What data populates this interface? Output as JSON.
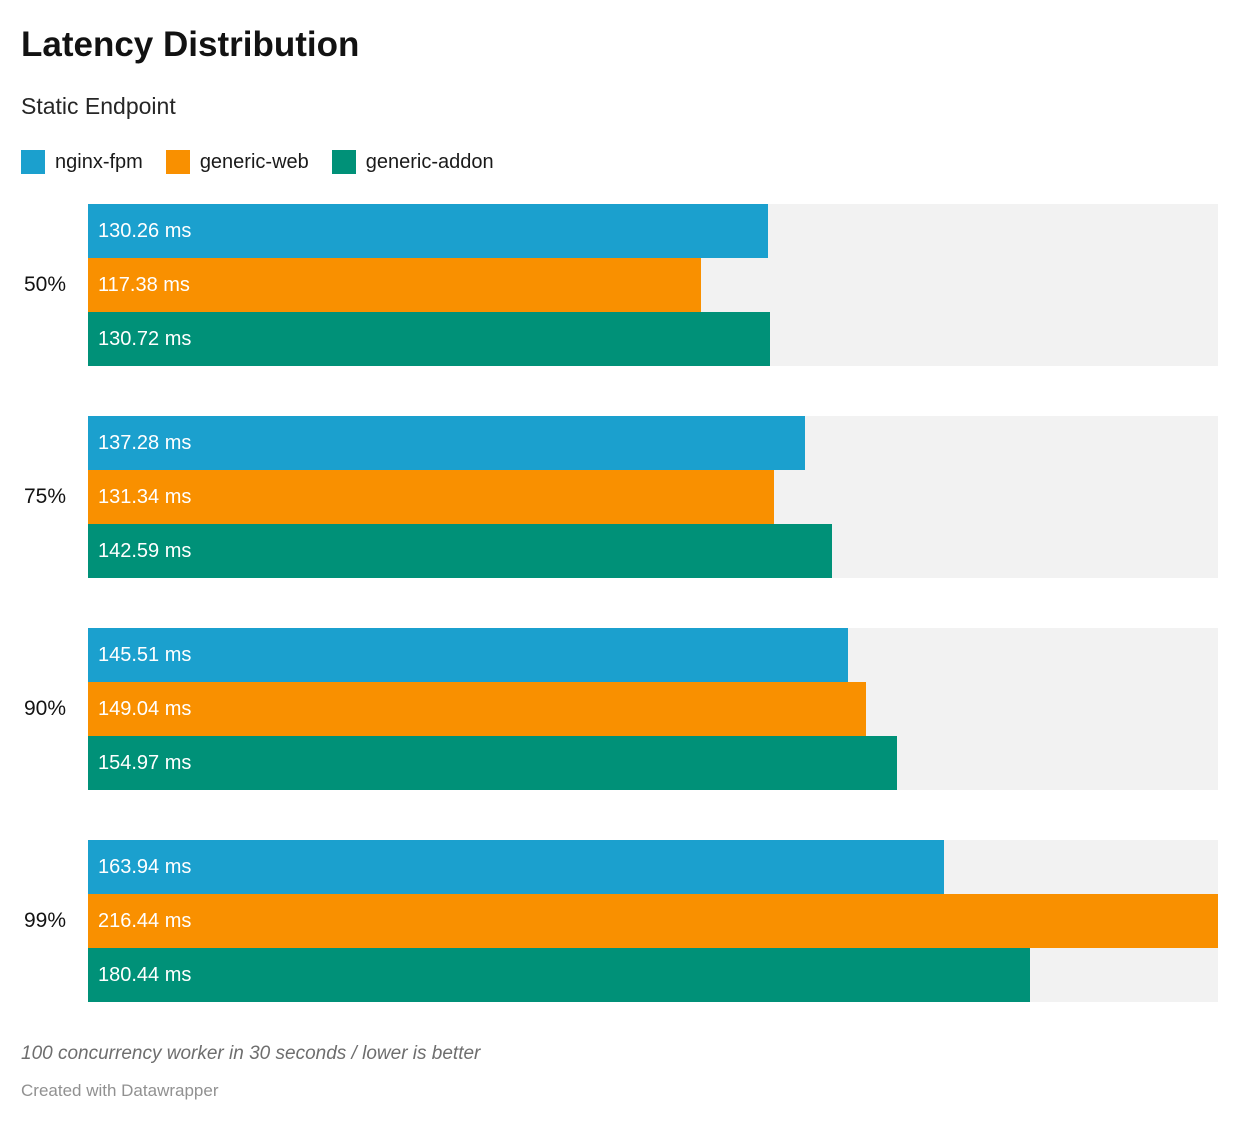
{
  "header": {
    "title": "Latency Distribution",
    "subtitle": "Static Endpoint"
  },
  "legend": {
    "items": [
      {
        "label": "nginx-fpm",
        "color": "#1ba0ce"
      },
      {
        "label": "generic-web",
        "color": "#f99000"
      },
      {
        "label": "generic-addon",
        "color": "#009178"
      }
    ]
  },
  "colors": {
    "track_background": "#f2f2f2",
    "value_label_text": "#ffffff"
  },
  "chart_data": {
    "type": "bar",
    "orientation": "horizontal",
    "title": "Latency Distribution",
    "subtitle": "Static Endpoint",
    "categories": [
      "50%",
      "75%",
      "90%",
      "99%"
    ],
    "series": [
      {
        "name": "nginx-fpm",
        "color": "#1ba0ce",
        "values": [
          130.26,
          137.28,
          145.51,
          163.94
        ],
        "labels": [
          "130.26 ms",
          "137.28 ms",
          "145.51 ms",
          "163.94 ms"
        ]
      },
      {
        "name": "generic-web",
        "color": "#f99000",
        "values": [
          117.38,
          131.34,
          149.04,
          216.44
        ],
        "labels": [
          "117.38 ms",
          "131.34 ms",
          "149.04 ms",
          "216.44 ms"
        ]
      },
      {
        "name": "generic-addon",
        "color": "#009178",
        "values": [
          130.72,
          142.59,
          154.97,
          180.44
        ],
        "labels": [
          "130.72 ms",
          "142.59 ms",
          "154.97 ms",
          "180.44 ms"
        ]
      }
    ],
    "xlim": [
      0,
      216.44
    ],
    "value_suffix": "ms",
    "grid": false,
    "legend_position": "top",
    "value_labels_inside_bars": true
  },
  "footer": {
    "note": "100 concurrency worker in 30 seconds / lower is better",
    "attribution": "Created with Datawrapper"
  }
}
